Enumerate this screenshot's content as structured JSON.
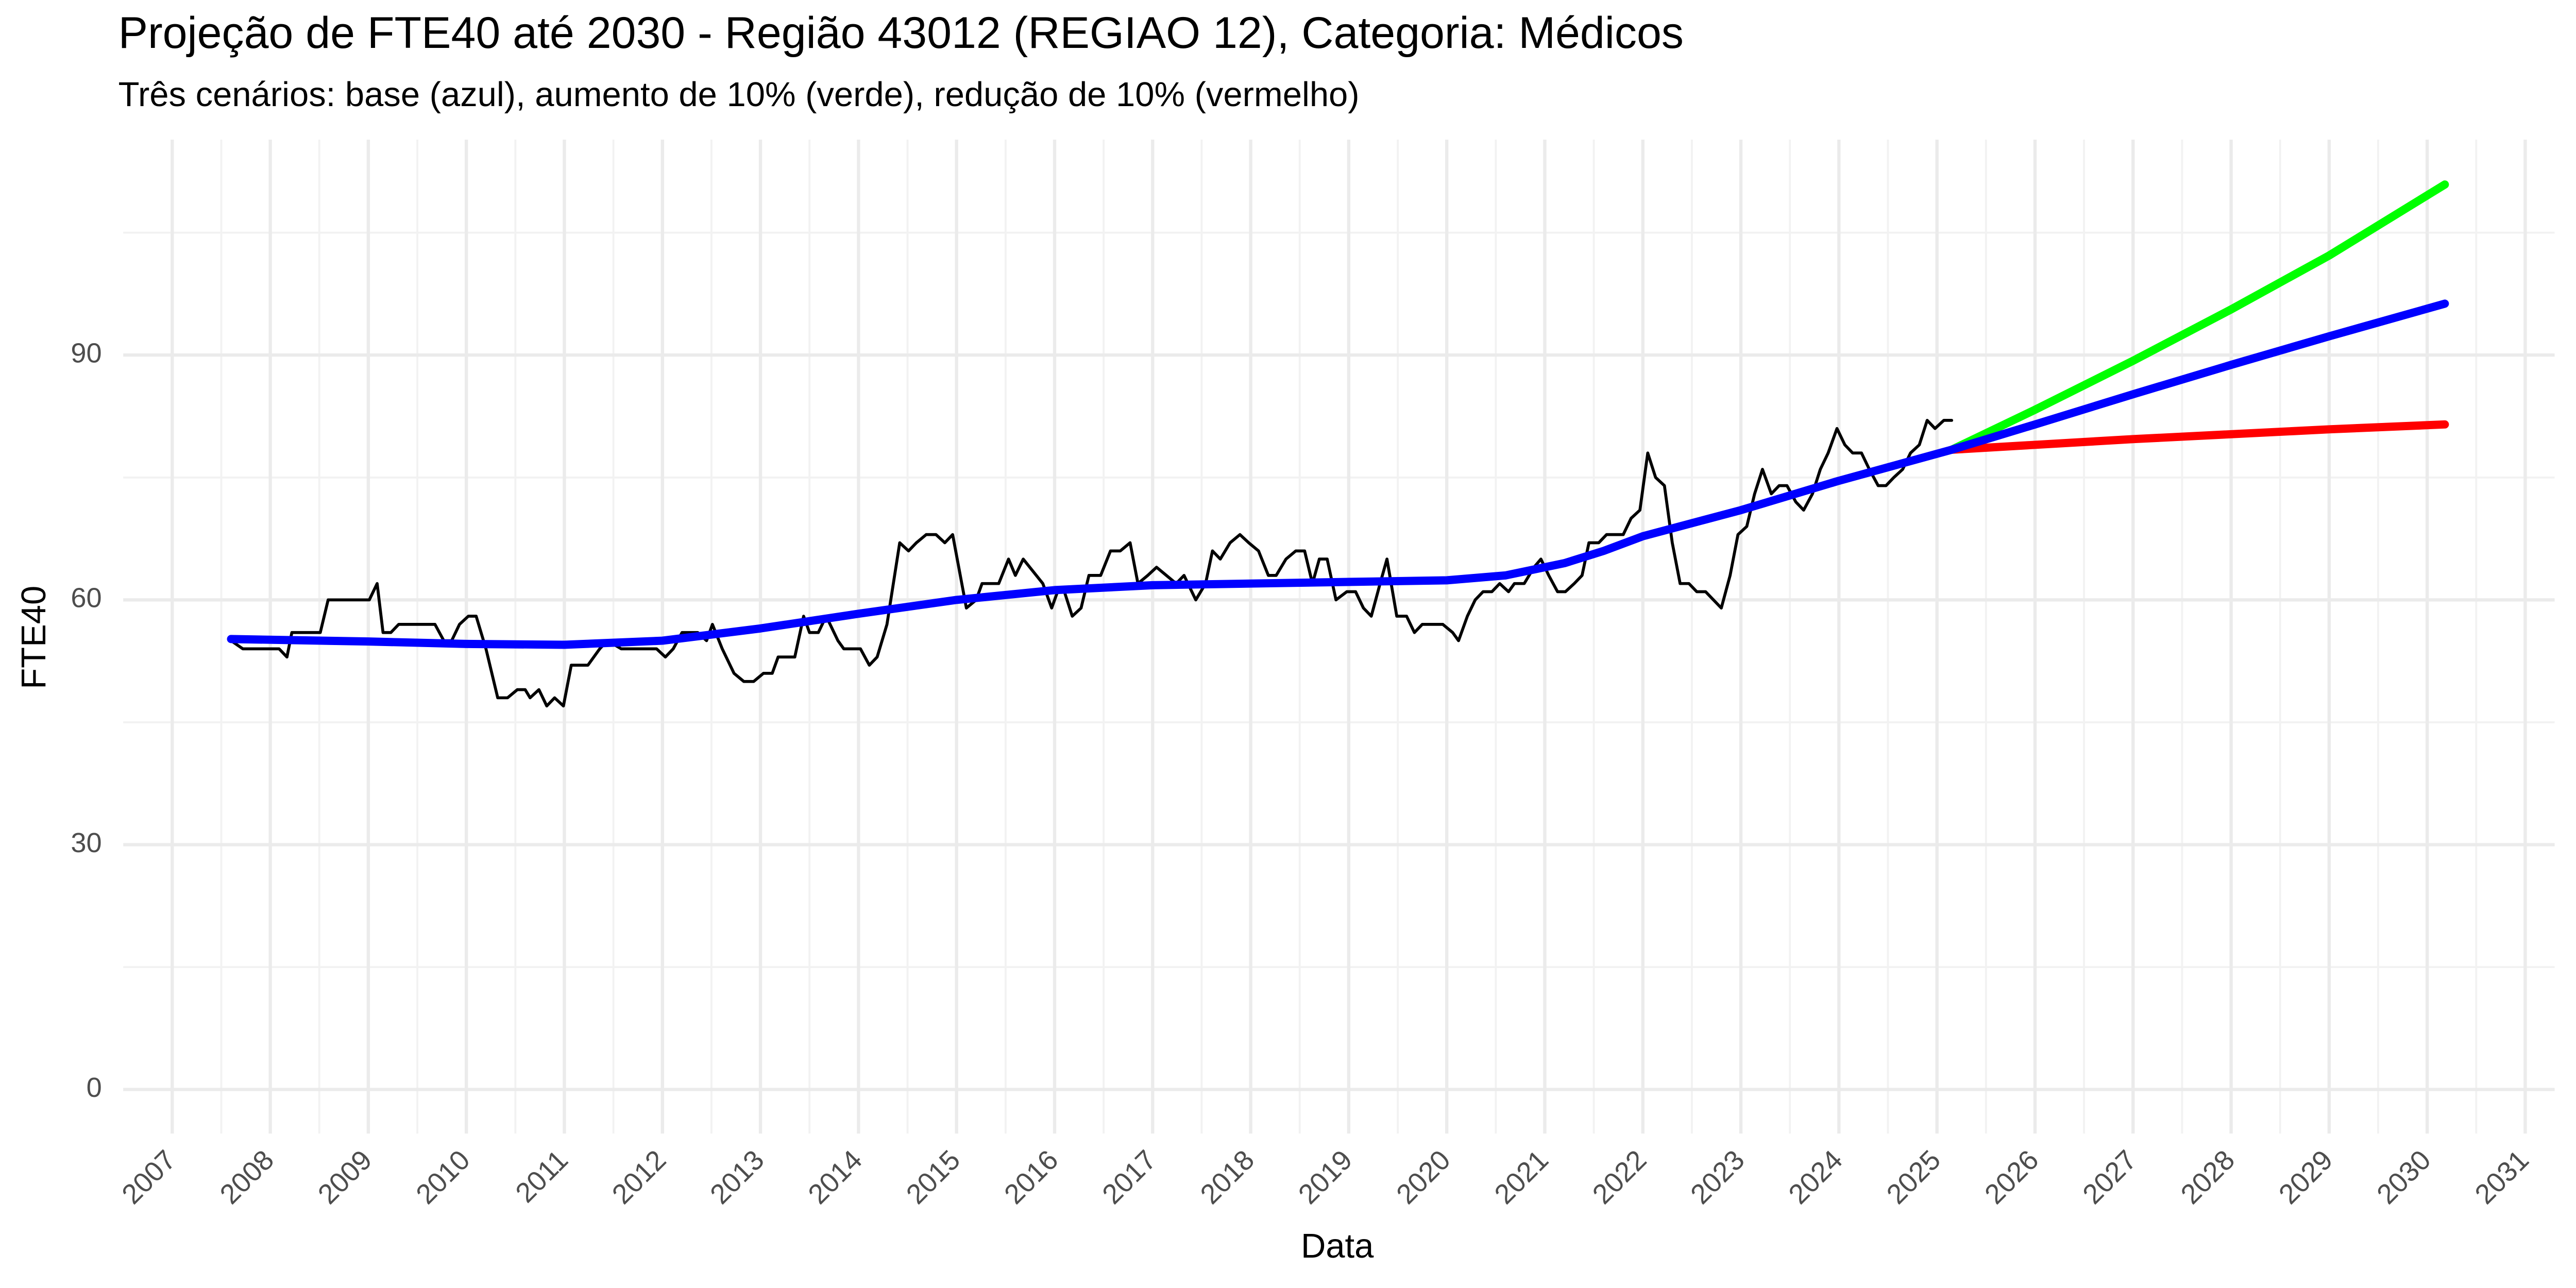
{
  "chart_data": {
    "type": "line",
    "title": "Projeção de FTE40 até 2030 - Região 43012 (REGIAO 12), Categoria: Médicos",
    "subtitle": "Três cenários: base (azul), aumento de 10% (verde), redução de 10% (vermelho)",
    "x_label": "Data",
    "y_label": "FTE40",
    "xlim": [
      2006.5,
      2031.3
    ],
    "xticks": [
      2007,
      2008,
      2009,
      2010,
      2011,
      2012,
      2013,
      2014,
      2015,
      2016,
      2017,
      2018,
      2019,
      2020,
      2021,
      2022,
      2023,
      2024,
      2025,
      2026,
      2027,
      2028,
      2029,
      2030,
      2031
    ],
    "ylim": [
      -5.4,
      116.4
    ],
    "yticks": [
      0,
      30,
      60,
      90
    ],
    "grid": true,
    "series": [
      {
        "color": "#000000",
        "x": [
          2007.6,
          2007.72,
          2008.09,
          2008.17,
          2008.22,
          2008.51,
          2008.59,
          2009.01,
          2009.09,
          2009.15,
          2009.23,
          2009.31,
          2009.68,
          2009.77,
          2009.85,
          2009.93,
          2010.02,
          2010.1,
          2010.2,
          2010.32,
          2010.42,
          2010.52,
          2010.6,
          2010.65,
          2010.74,
          2010.82,
          2010.9,
          2010.99,
          2011.07,
          2011.24,
          2011.36,
          2011.44,
          2011.58,
          2011.94,
          2012.03,
          2012.11,
          2012.2,
          2012.36,
          2012.45,
          2012.51,
          2012.61,
          2012.73,
          2012.83,
          2012.93,
          2013.03,
          2013.12,
          2013.18,
          2013.35,
          2013.44,
          2013.5,
          2013.59,
          2013.67,
          2013.79,
          2013.85,
          2014.02,
          2014.11,
          2014.19,
          2014.29,
          2014.42,
          2014.51,
          2014.59,
          2014.69,
          2014.79,
          2014.88,
          2014.96,
          2015.1,
          2015.2,
          2015.26,
          2015.43,
          2015.53,
          2015.6,
          2015.68,
          2015.88,
          2015.97,
          2016.03,
          2016.1,
          2016.18,
          2016.27,
          2016.35,
          2016.47,
          2016.57,
          2016.67,
          2016.77,
          2016.85,
          2016.95,
          2017.04,
          2017.14,
          2017.24,
          2017.32,
          2017.44,
          2017.54,
          2017.61,
          2017.69,
          2017.79,
          2017.89,
          2017.98,
          2018.08,
          2018.18,
          2018.26,
          2018.36,
          2018.46,
          2018.55,
          2018.63,
          2018.7,
          2018.78,
          2018.87,
          2018.98,
          2019.07,
          2019.15,
          2019.23,
          2019.32,
          2019.39,
          2019.49,
          2019.59,
          2019.67,
          2019.75,
          2019.96,
          2020.06,
          2020.12,
          2020.21,
          2020.29,
          2020.37,
          2020.46,
          2020.54,
          2020.63,
          2020.69,
          2020.79,
          2020.89,
          2020.96,
          2021.04,
          2021.13,
          2021.21,
          2021.3,
          2021.38,
          2021.45,
          2021.55,
          2021.63,
          2021.8,
          2021.88,
          2021.97,
          2022.05,
          2022.13,
          2022.22,
          2022.3,
          2022.38,
          2022.47,
          2022.55,
          2022.64,
          2022.72,
          2022.8,
          2022.89,
          2022.97,
          2023.06,
          2023.14,
          2023.22,
          2023.31,
          2023.39,
          2023.47,
          2023.56,
          2023.64,
          2023.73,
          2023.81,
          2023.89,
          2023.98,
          2024.06,
          2024.14,
          2024.23,
          2024.31,
          2024.4,
          2024.48,
          2024.56,
          2024.65,
          2024.73,
          2024.82,
          2024.9,
          2024.98,
          2025.07,
          2025.15
        ],
        "values": [
          55,
          54,
          54,
          53,
          56,
          56,
          60,
          60,
          62,
          56,
          56,
          57,
          57,
          55,
          55,
          57,
          58,
          58,
          54,
          48,
          48,
          49,
          49,
          48,
          49,
          47,
          48,
          47,
          52,
          52,
          54,
          55,
          54,
          54,
          53,
          54,
          56,
          56,
          55,
          57,
          54,
          51,
          50,
          50,
          51,
          51,
          53,
          53,
          58,
          56,
          56,
          58,
          55,
          54,
          54,
          52,
          53,
          57,
          67,
          66,
          67,
          68,
          68,
          67,
          68,
          59,
          60,
          62,
          62,
          65,
          63,
          65,
          62,
          59,
          61,
          61,
          58,
          59,
          63,
          63,
          66,
          66,
          67,
          62,
          63,
          64,
          63,
          62,
          63,
          60,
          62,
          66,
          65,
          67,
          68,
          67,
          66,
          63,
          63,
          65,
          66,
          66,
          62,
          65,
          65,
          60,
          61,
          61,
          59,
          58,
          62,
          65,
          58,
          58,
          56,
          57,
          57,
          56,
          55,
          58,
          60,
          61,
          61,
          62,
          61,
          62,
          62,
          64,
          65,
          63,
          61,
          61,
          62,
          63,
          67,
          67,
          68,
          68,
          70,
          71,
          78,
          75,
          74,
          67,
          62,
          62,
          61,
          61,
          60,
          59,
          63,
          68,
          69,
          73,
          76,
          73,
          74,
          74,
          72,
          71,
          73,
          76,
          78,
          81,
          79,
          78,
          78,
          76,
          74,
          74,
          75,
          76,
          78,
          79,
          82,
          81,
          82,
          82
        ]
      },
      {
        "color": "#00ff00",
        "x": [
          2025.15,
          2026,
          2027,
          2028,
          2029,
          2030.18
        ],
        "values": [
          78.4,
          83.3,
          89.3,
          95.6,
          102.2,
          110.9
        ]
      },
      {
        "color": "#ff0000",
        "x": [
          2025.15,
          2026,
          2027,
          2028,
          2029,
          2030.18
        ],
        "values": [
          78.4,
          79.0,
          79.7,
          80.3,
          80.9,
          81.5
        ]
      },
      {
        "color": "#0000ff",
        "x": [
          2007.6,
          2009,
          2010,
          2011,
          2012,
          2013,
          2014,
          2015,
          2016,
          2017,
          2018,
          2019,
          2020,
          2020.6,
          2021.2,
          2021.6,
          2022,
          2023,
          2024,
          2025.15,
          2026,
          2027,
          2028,
          2029,
          2030.18
        ],
        "values": [
          55.2,
          54.9,
          54.6,
          54.5,
          55,
          56.5,
          58.3,
          60,
          61.2,
          61.8,
          62,
          62.2,
          62.4,
          63,
          64.5,
          66,
          67.8,
          71,
          74.6,
          78.4,
          81.5,
          85.2,
          88.8,
          92.3,
          96.3
        ]
      }
    ]
  }
}
